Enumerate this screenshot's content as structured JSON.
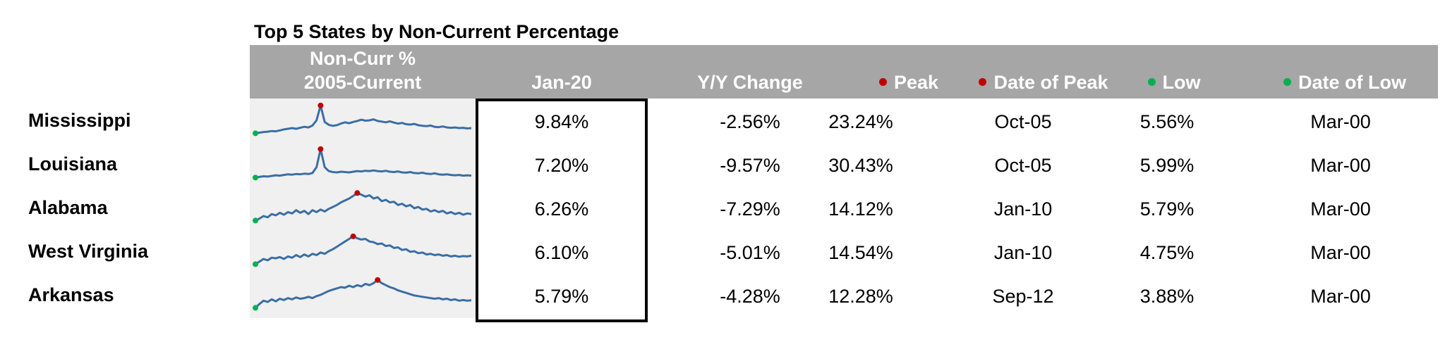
{
  "title": "Top 5 States by Non-Current Percentage",
  "colors": {
    "header_bg": "#a6a6a6",
    "peak_dot": "#c00000",
    "low_dot": "#00b050",
    "sparkline": "#3a6ea5",
    "sparkline_bg": "#f0f0f0"
  },
  "header": {
    "sparkline_line1": "Non-Curr %",
    "sparkline_line2": "2005-Current",
    "current": "Jan-20",
    "yoy": "Y/Y Change",
    "peak": "Peak",
    "peak_date": "Date of Peak",
    "low": "Low",
    "low_date": "Date of Low"
  },
  "rows": [
    {
      "state": "Mississippi",
      "current": "9.84%",
      "yoy": "-2.56%",
      "peak": "23.24%",
      "peak_date": "Oct-05",
      "low": "5.56%",
      "low_date": "Mar-00",
      "spark": [
        0.1,
        0.12,
        0.14,
        0.15,
        0.17,
        0.16,
        0.19,
        0.22,
        0.24,
        0.26,
        0.24,
        0.27,
        0.3,
        0.28,
        0.34,
        0.5,
        0.96,
        0.45,
        0.36,
        0.33,
        0.35,
        0.4,
        0.44,
        0.41,
        0.45,
        0.48,
        0.52,
        0.49,
        0.5,
        0.53,
        0.48,
        0.46,
        0.44,
        0.47,
        0.43,
        0.4,
        0.42,
        0.38,
        0.37,
        0.39,
        0.35,
        0.33,
        0.32,
        0.34,
        0.3,
        0.29,
        0.31,
        0.28,
        0.27,
        0.28,
        0.26,
        0.27,
        0.25,
        0.26
      ]
    },
    {
      "state": "Louisiana",
      "current": "7.20%",
      "yoy": "-9.57%",
      "peak": "30.43%",
      "peak_date": "Oct-05",
      "low": "5.99%",
      "low_date": "Mar-00",
      "spark": [
        0.08,
        0.1,
        0.12,
        0.11,
        0.13,
        0.15,
        0.14,
        0.16,
        0.18,
        0.17,
        0.19,
        0.18,
        0.2,
        0.19,
        0.22,
        0.4,
        0.96,
        0.4,
        0.28,
        0.25,
        0.24,
        0.26,
        0.25,
        0.24,
        0.26,
        0.28,
        0.27,
        0.29,
        0.28,
        0.3,
        0.28,
        0.27,
        0.29,
        0.26,
        0.25,
        0.27,
        0.24,
        0.23,
        0.25,
        0.22,
        0.21,
        0.23,
        0.2,
        0.19,
        0.21,
        0.18,
        0.17,
        0.18,
        0.16,
        0.15,
        0.16,
        0.14,
        0.15,
        0.14
      ]
    },
    {
      "state": "Alabama",
      "current": "6.26%",
      "yoy": "-7.29%",
      "peak": "14.12%",
      "peak_date": "Jan-10",
      "low": "5.79%",
      "low_date": "Mar-00",
      "spark": [
        0.1,
        0.16,
        0.24,
        0.2,
        0.3,
        0.26,
        0.34,
        0.28,
        0.36,
        0.32,
        0.42,
        0.34,
        0.4,
        0.3,
        0.42,
        0.36,
        0.44,
        0.38,
        0.46,
        0.52,
        0.58,
        0.66,
        0.72,
        0.78,
        0.86,
        0.95,
        0.9,
        0.84,
        0.88,
        0.78,
        0.82,
        0.7,
        0.74,
        0.66,
        0.68,
        0.58,
        0.62,
        0.54,
        0.58,
        0.48,
        0.52,
        0.44,
        0.46,
        0.38,
        0.42,
        0.36,
        0.4,
        0.32,
        0.36,
        0.3,
        0.34,
        0.28,
        0.32,
        0.3
      ]
    },
    {
      "state": "West Virginia",
      "current": "6.10%",
      "yoy": "-5.01%",
      "peak": "14.54%",
      "peak_date": "Jan-10",
      "low": "4.75%",
      "low_date": "Mar-00",
      "spark": [
        0.1,
        0.18,
        0.26,
        0.22,
        0.3,
        0.28,
        0.32,
        0.26,
        0.34,
        0.3,
        0.38,
        0.32,
        0.4,
        0.34,
        0.42,
        0.38,
        0.46,
        0.42,
        0.5,
        0.56,
        0.64,
        0.72,
        0.8,
        0.88,
        0.96,
        0.9,
        0.86,
        0.88,
        0.8,
        0.78,
        0.72,
        0.74,
        0.66,
        0.68,
        0.6,
        0.62,
        0.54,
        0.56,
        0.48,
        0.5,
        0.44,
        0.46,
        0.4,
        0.42,
        0.38,
        0.4,
        0.36,
        0.38,
        0.34,
        0.36,
        0.33,
        0.35,
        0.34,
        0.36
      ]
    },
    {
      "state": "Arkansas",
      "current": "5.79%",
      "yoy": "-4.28%",
      "peak": "12.28%",
      "peak_date": "Sep-12",
      "low": "3.88%",
      "low_date": "Mar-00",
      "spark": [
        0.1,
        0.22,
        0.32,
        0.28,
        0.36,
        0.3,
        0.38,
        0.34,
        0.4,
        0.36,
        0.42,
        0.38,
        0.4,
        0.44,
        0.4,
        0.46,
        0.5,
        0.56,
        0.62,
        0.66,
        0.7,
        0.74,
        0.72,
        0.78,
        0.74,
        0.8,
        0.76,
        0.84,
        0.8,
        0.86,
        0.96,
        0.86,
        0.8,
        0.74,
        0.7,
        0.64,
        0.6,
        0.56,
        0.52,
        0.48,
        0.46,
        0.44,
        0.42,
        0.4,
        0.38,
        0.4,
        0.36,
        0.38,
        0.34,
        0.36,
        0.32,
        0.34,
        0.32,
        0.33
      ]
    }
  ]
}
